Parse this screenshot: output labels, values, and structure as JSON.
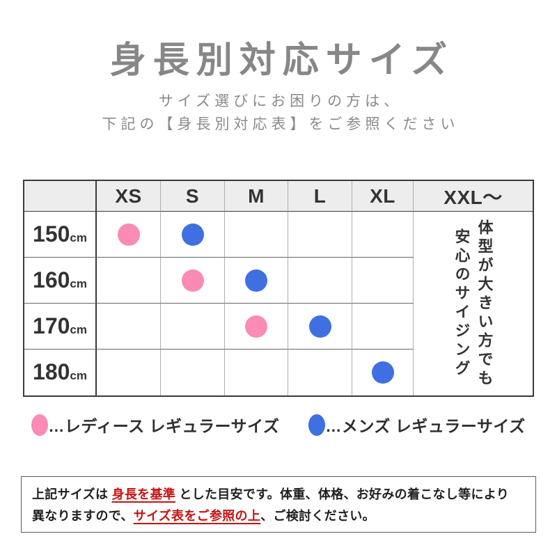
{
  "header": {
    "title": "身長別対応サイズ",
    "subtitle_line1": "サイズ選びにお困りの方は、",
    "subtitle_line2": "下記の【身長別対応表】をご参照ください"
  },
  "table": {
    "corner": "",
    "columns": [
      "XS",
      "S",
      "M",
      "L",
      "XL",
      "XXL〜"
    ],
    "rows": [
      {
        "height": "150",
        "unit": "cm",
        "ladies": "XS",
        "mens": "S"
      },
      {
        "height": "160",
        "unit": "cm",
        "ladies": "S",
        "mens": "M"
      },
      {
        "height": "170",
        "unit": "cm",
        "ladies": "M",
        "mens": "L"
      },
      {
        "height": "180",
        "unit": "cm",
        "ladies": null,
        "mens": "XL"
      }
    ],
    "xxl_note_line1": "体型が大きい方でも",
    "xxl_note_line2": "安心のサイジング"
  },
  "legend": {
    "ladies_label": "…レディース レギュラーサイズ",
    "mens_label": "…メンズ レギュラーサイズ"
  },
  "footer": {
    "line1_pre": "上記サイズは ",
    "line1_red": "身長を基準",
    "line1_post": " とした目安です。体重、体格、お好みの着こなし等により",
    "line2_pre": "異なりますので、",
    "line2_red": "サイズ表をご参照の上",
    "line2_post": "、ご検討ください。"
  },
  "colors": {
    "ladies": "#F98BB5",
    "mens": "#3F6FE1",
    "red": "#C41414",
    "title_gray": "#878787",
    "header_bg": "#EDEDED"
  },
  "chart_data": {
    "type": "table",
    "title": "身長別対応サイズ",
    "columns": [
      "XS",
      "S",
      "M",
      "L",
      "XL",
      "XXL〜"
    ],
    "row_labels": [
      "150cm",
      "160cm",
      "170cm",
      "180cm"
    ],
    "series": [
      {
        "name": "レディース レギュラーサイズ",
        "color": "#F98BB5",
        "marks": {
          "150cm": "XS",
          "160cm": "S",
          "170cm": "M"
        }
      },
      {
        "name": "メンズ レギュラーサイズ",
        "color": "#3F6FE1",
        "marks": {
          "150cm": "S",
          "160cm": "M",
          "170cm": "L",
          "180cm": "XL"
        }
      }
    ],
    "merged_cell": {
      "column": "XXL〜",
      "note": "体型が大きい方でも 安心のサイジング"
    },
    "legend_position": "below-table"
  }
}
